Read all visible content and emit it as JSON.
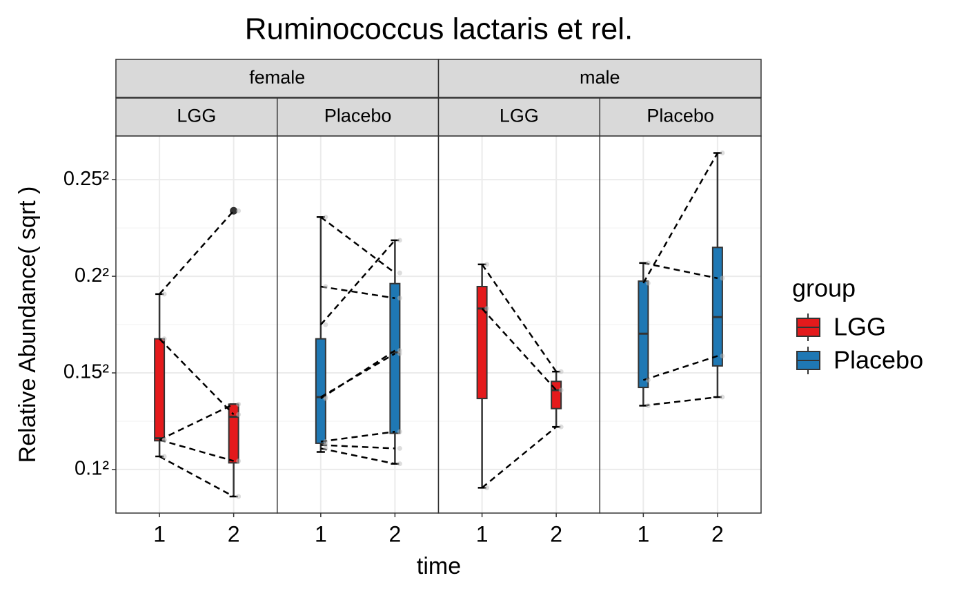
{
  "chart_data": {
    "type": "boxplot",
    "title": "Ruminococcus lactaris et rel.",
    "xlabel": "time",
    "ylabel": "Relative Abundance( sqrt )",
    "yscale": "sqrt",
    "ylim": [
      0.006,
      0.0743
    ],
    "yticks": [
      {
        "value": 0.01,
        "label": "0.1²"
      },
      {
        "value": 0.0225,
        "label": "0.15²"
      },
      {
        "value": 0.04,
        "label": "0.2²"
      },
      {
        "value": 0.0625,
        "label": "0.25²"
      }
    ],
    "grid": true,
    "legend": {
      "title": "group",
      "position": "right"
    },
    "groups": [
      {
        "name": "LGG",
        "color": "#e41a1c"
      },
      {
        "name": "Placebo",
        "color": "#1f78b4"
      }
    ],
    "facets": [
      {
        "label": "female",
        "panels": [
          {
            "label": "LGG",
            "categories": [
              "1",
              "2"
            ],
            "boxes": [
              {
                "low": 0.0114,
                "q1": 0.0132,
                "median": 0.0135,
                "q3": 0.0281,
                "high": 0.0364,
                "outliers": []
              },
              {
                "low": 0.0074,
                "q1": 0.0107,
                "median": 0.0162,
                "q3": 0.0179,
                "high": 0.0179,
                "outliers": [
                  0.0547
                ]
              }
            ],
            "pairs": [
              [
                0.0364,
                0.0547
              ],
              [
                0.0281,
                0.0165
              ],
              [
                0.0133,
                0.0179
              ],
              [
                0.0133,
                0.0109
              ],
              [
                0.0114,
                0.0074
              ]
            ]
          },
          {
            "label": "Placebo",
            "categories": [
              "1",
              "2"
            ],
            "boxes": [
              {
                "low": 0.0119,
                "q1": 0.0129,
                "median": 0.0189,
                "q3": 0.0281,
                "high": 0.0532,
                "outliers": []
              },
              {
                "low": 0.0106,
                "q1": 0.0141,
                "median": 0.0258,
                "q3": 0.0385,
                "high": 0.0478,
                "outliers": []
              }
            ],
            "pairs": [
              [
                0.0532,
                0.0407
              ],
              [
                0.0379,
                0.0356
              ],
              [
                0.0306,
                0.0478
              ],
              [
                0.0189,
                0.0256
              ],
              [
                0.0187,
                0.0261
              ],
              [
                0.0131,
                0.0143
              ],
              [
                0.0127,
                0.0123
              ],
              [
                0.0123,
                0.0106
              ]
            ]
          }
        ]
      },
      {
        "label": "male",
        "panels": [
          {
            "label": "LGG",
            "categories": [
              "1",
              "2"
            ],
            "boxes": [
              {
                "low": 0.0082,
                "q1": 0.0187,
                "median": 0.0336,
                "q3": 0.0379,
                "high": 0.0425,
                "outliers": []
              },
              {
                "low": 0.0149,
                "q1": 0.0173,
                "median": 0.0199,
                "q3": 0.0212,
                "high": 0.0227,
                "outliers": []
              }
            ],
            "pairs": [
              [
                0.0425,
                0.0227
              ],
              [
                0.0336,
                0.0199
              ],
              [
                0.0082,
                0.0149
              ]
            ]
          },
          {
            "label": "Placebo",
            "categories": [
              "1",
              "2"
            ],
            "boxes": [
              {
                "low": 0.0177,
                "q1": 0.0203,
                "median": 0.029,
                "q3": 0.039,
                "high": 0.0428,
                "outliers": []
              },
              {
                "low": 0.0189,
                "q1": 0.0236,
                "median": 0.032,
                "q3": 0.0462,
                "high": 0.0696,
                "outliers": []
              }
            ],
            "pairs": [
              [
                0.0386,
                0.0696
              ],
              [
                0.0428,
                0.0396
              ],
              [
                0.0214,
                0.0252
              ],
              [
                0.0177,
                0.0189
              ]
            ]
          }
        ]
      }
    ]
  }
}
